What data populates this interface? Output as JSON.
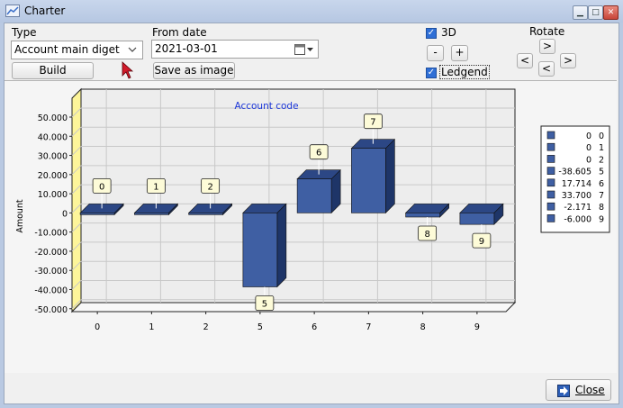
{
  "window": {
    "title": "Charter"
  },
  "controls": {
    "type_label": "Type",
    "type_value": "Account main diget",
    "build_label": "Build",
    "from_date_label": "From date",
    "from_date_value": "2021-03-01",
    "save_label": "Save as image",
    "three_d_label": "3D",
    "three_d_checked": true,
    "minus_label": "-",
    "plus_label": "+",
    "legend_label": "Ledgend",
    "legend_checked": true,
    "rotate_label": "Rotate",
    "rotate_up": ">",
    "rotate_left": "<",
    "rotate_down": "<",
    "rotate_right": ">"
  },
  "footer": {
    "close_label": "Close"
  },
  "chart_data": {
    "type": "bar",
    "title": "Account code",
    "ylabel": "Amount",
    "xlabel": "",
    "ylim": [
      -50000,
      50000
    ],
    "yticks": [
      50000,
      40000,
      30000,
      20000,
      10000,
      0,
      -10000,
      -20000,
      -30000,
      -40000,
      -50000
    ],
    "ytick_labels": [
      "50.000",
      "40.000",
      "30.000",
      "20.000",
      "10.000",
      "0",
      "-10.000",
      "-20.000",
      "-30.000",
      "-40.000",
      "-50.000"
    ],
    "categories": [
      "0",
      "1",
      "2",
      "5",
      "6",
      "7",
      "8",
      "9"
    ],
    "values": [
      0,
      0,
      0,
      -38605,
      17714,
      33700,
      -2171,
      -6000
    ],
    "data_labels": [
      "0",
      "1",
      "2",
      "5",
      "6",
      "7",
      "8",
      "9"
    ],
    "legend": [
      {
        "value": "0",
        "key": "0"
      },
      {
        "value": "0",
        "key": "1"
      },
      {
        "value": "0",
        "key": "2"
      },
      {
        "value": "-38.605",
        "key": "5"
      },
      {
        "value": "17.714",
        "key": "6"
      },
      {
        "value": "33.700",
        "key": "7"
      },
      {
        "value": "-2.171",
        "key": "8"
      },
      {
        "value": "-6.000",
        "key": "9"
      }
    ],
    "colors": {
      "bar": "#3f5fa3",
      "bar_dark": "#1e3568",
      "bar_top": "#2c4785",
      "wall": "#ededed",
      "left_wall": "#fdf59a"
    }
  }
}
